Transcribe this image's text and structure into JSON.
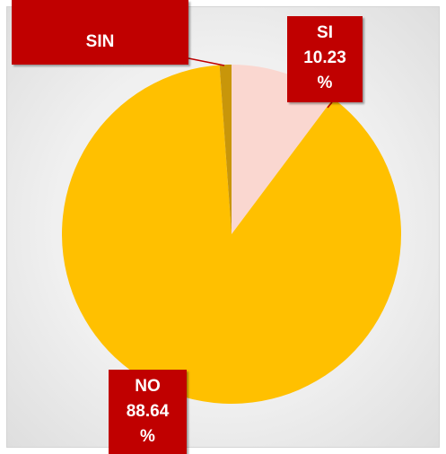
{
  "chart_data": {
    "type": "pie",
    "title": "",
    "slices": [
      {
        "label": "SI",
        "value": 10.23,
        "value_text": "10.23",
        "unit": "%",
        "color": "#fad7d0"
      },
      {
        "label": "NO",
        "value": 88.64,
        "value_text": "88.64",
        "unit": "%",
        "color": "#ffc000"
      },
      {
        "label": "SIN",
        "value": 1.13,
        "value_text": "",
        "unit": "",
        "color": "#c8960a"
      }
    ],
    "start_angle_deg": 0,
    "direction": "clockwise",
    "legend": "none",
    "label_style": "callout",
    "label_color": "#c00000",
    "label_text_color": "#ffffff"
  }
}
